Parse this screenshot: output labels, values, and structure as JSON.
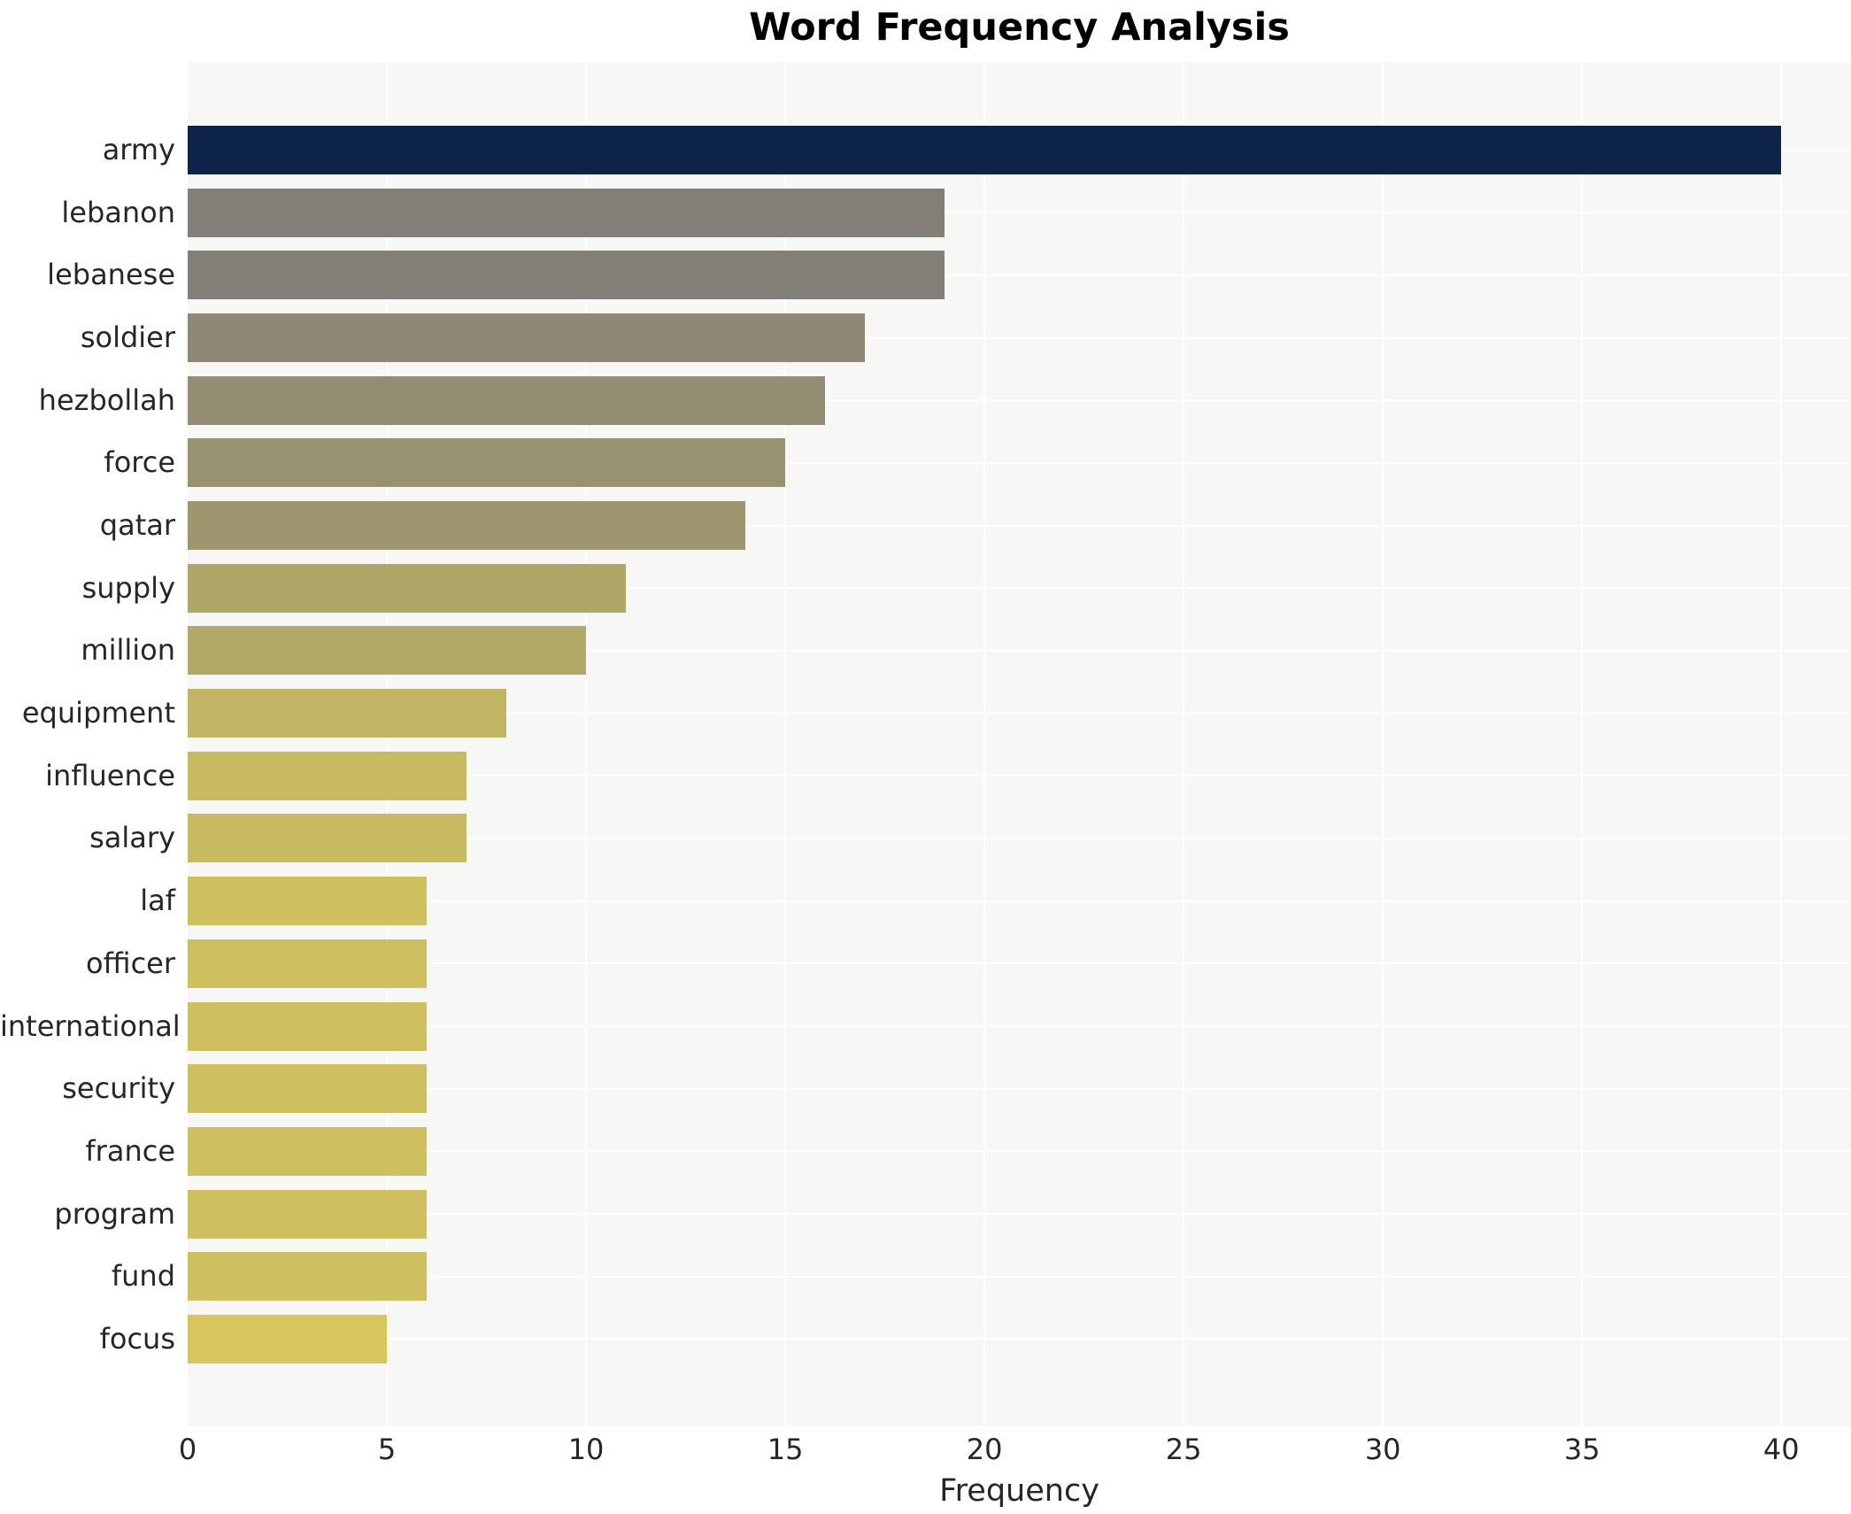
{
  "chart_data": {
    "type": "bar",
    "orientation": "horizontal",
    "title": "Word Frequency Analysis",
    "xlabel": "Frequency",
    "ylabel": "",
    "categories": [
      "army",
      "lebanon",
      "lebanese",
      "soldier",
      "hezbollah",
      "force",
      "qatar",
      "supply",
      "million",
      "equipment",
      "influence",
      "salary",
      "laf",
      "officer",
      "international",
      "security",
      "france",
      "program",
      "fund",
      "focus"
    ],
    "values": [
      40,
      19,
      19,
      17,
      16,
      15,
      14,
      11,
      10,
      8,
      7,
      7,
      6,
      6,
      6,
      6,
      6,
      6,
      6,
      5
    ],
    "bar_colors": [
      "#0d2347",
      "#827f78",
      "#827f78",
      "#8e8875",
      "#938d73",
      "#999270",
      "#9e966f",
      "#b0a668",
      "#b3a966",
      "#c1b463",
      "#c8ba61",
      "#c8ba61",
      "#cfc05f",
      "#cfc05f",
      "#cfc05f",
      "#cfc05f",
      "#cfc05f",
      "#cfc05f",
      "#cfc05f",
      "#d8c65d"
    ],
    "xticks": [
      0,
      5,
      10,
      15,
      20,
      25,
      30,
      35,
      40
    ],
    "xlim": [
      0,
      41.75
    ],
    "grid": true,
    "legend": "none",
    "colors": {
      "plot_background": "#f7f7f6",
      "gridline": "#ffffff",
      "title_text": "#000000",
      "axis_text": "#262626"
    }
  }
}
